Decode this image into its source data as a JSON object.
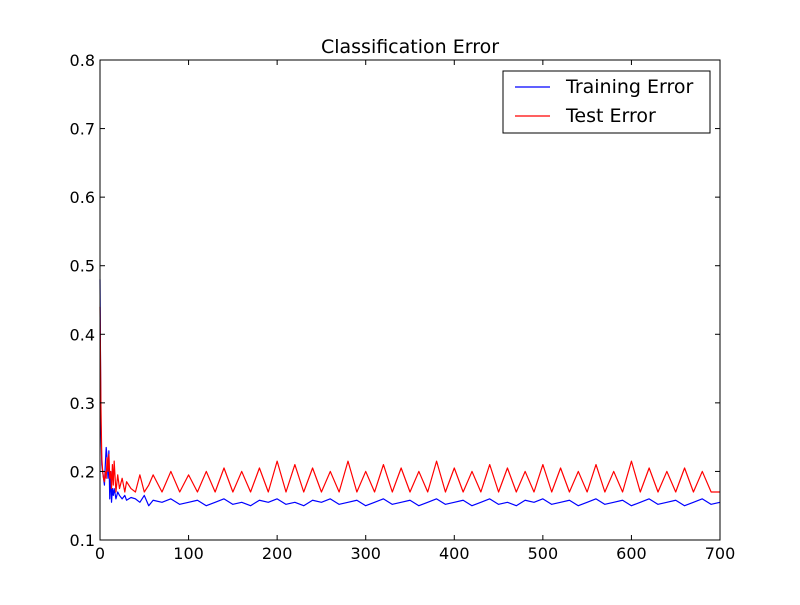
{
  "chart_data": {
    "type": "line",
    "title": "Classification Error",
    "xlabel": "",
    "ylabel": "",
    "xlim": [
      0,
      700
    ],
    "ylim": [
      0.1,
      0.8
    ],
    "xticks": [
      0,
      100,
      200,
      300,
      400,
      500,
      600,
      700
    ],
    "yticks": [
      0.1,
      0.2,
      0.3,
      0.4,
      0.5,
      0.6,
      0.7,
      0.8
    ],
    "xtick_labels": [
      "0",
      "100",
      "200",
      "300",
      "400",
      "500",
      "600",
      "700"
    ],
    "ytick_labels": [
      "0.1",
      "0.2",
      "0.3",
      "0.4",
      "0.5",
      "0.6",
      "0.7",
      "0.8"
    ],
    "grid": false,
    "legend_position": "top-right",
    "series": [
      {
        "name": "Training Error",
        "color": "#0000ff",
        "x": [
          0,
          1,
          2,
          3,
          4,
          5,
          6,
          7,
          8,
          9,
          10,
          11,
          12,
          13,
          14,
          15,
          16,
          18,
          20,
          22,
          25,
          28,
          30,
          35,
          40,
          45,
          50,
          55,
          60,
          70,
          80,
          90,
          100,
          110,
          120,
          130,
          140,
          150,
          160,
          170,
          180,
          190,
          200,
          210,
          220,
          230,
          240,
          250,
          260,
          270,
          280,
          290,
          300,
          310,
          320,
          330,
          340,
          350,
          360,
          370,
          380,
          390,
          400,
          410,
          420,
          430,
          440,
          450,
          460,
          470,
          480,
          490,
          500,
          510,
          520,
          530,
          540,
          550,
          560,
          570,
          580,
          590,
          600,
          610,
          620,
          630,
          640,
          650,
          660,
          670,
          680,
          690,
          700
        ],
        "values": [
          0.48,
          0.27,
          0.21,
          0.2,
          0.19,
          0.18,
          0.21,
          0.235,
          0.22,
          0.19,
          0.23,
          0.16,
          0.2,
          0.155,
          0.175,
          0.165,
          0.175,
          0.16,
          0.17,
          0.165,
          0.16,
          0.165,
          0.158,
          0.162,
          0.16,
          0.155,
          0.165,
          0.15,
          0.158,
          0.155,
          0.16,
          0.152,
          0.155,
          0.158,
          0.15,
          0.155,
          0.16,
          0.152,
          0.155,
          0.15,
          0.158,
          0.155,
          0.16,
          0.152,
          0.155,
          0.15,
          0.158,
          0.155,
          0.16,
          0.152,
          0.155,
          0.158,
          0.15,
          0.155,
          0.16,
          0.152,
          0.155,
          0.158,
          0.15,
          0.155,
          0.16,
          0.152,
          0.155,
          0.158,
          0.15,
          0.155,
          0.16,
          0.152,
          0.155,
          0.15,
          0.158,
          0.155,
          0.16,
          0.152,
          0.155,
          0.158,
          0.15,
          0.155,
          0.16,
          0.152,
          0.155,
          0.158,
          0.15,
          0.155,
          0.16,
          0.152,
          0.155,
          0.158,
          0.15,
          0.155,
          0.16,
          0.152,
          0.155
        ]
      },
      {
        "name": "Test Error",
        "color": "#ff0000",
        "x": [
          0,
          1,
          2,
          3,
          4,
          5,
          6,
          7,
          8,
          9,
          10,
          11,
          12,
          13,
          14,
          15,
          16,
          18,
          20,
          22,
          25,
          28,
          30,
          35,
          40,
          45,
          50,
          55,
          60,
          70,
          80,
          90,
          100,
          110,
          120,
          130,
          140,
          150,
          160,
          170,
          180,
          190,
          200,
          210,
          220,
          230,
          240,
          250,
          260,
          270,
          280,
          290,
          300,
          310,
          320,
          330,
          340,
          350,
          360,
          370,
          380,
          390,
          400,
          410,
          420,
          430,
          440,
          450,
          460,
          470,
          480,
          490,
          500,
          510,
          520,
          530,
          540,
          550,
          560,
          570,
          580,
          590,
          600,
          610,
          620,
          630,
          640,
          650,
          660,
          670,
          680,
          690,
          700
        ],
        "values": [
          0.44,
          0.3,
          0.22,
          0.2,
          0.19,
          0.185,
          0.2,
          0.19,
          0.22,
          0.2,
          0.225,
          0.19,
          0.2,
          0.175,
          0.21,
          0.18,
          0.215,
          0.17,
          0.195,
          0.175,
          0.19,
          0.17,
          0.185,
          0.175,
          0.17,
          0.195,
          0.17,
          0.18,
          0.195,
          0.17,
          0.2,
          0.17,
          0.195,
          0.17,
          0.2,
          0.17,
          0.205,
          0.17,
          0.2,
          0.17,
          0.205,
          0.17,
          0.215,
          0.17,
          0.21,
          0.17,
          0.205,
          0.17,
          0.2,
          0.17,
          0.215,
          0.17,
          0.2,
          0.17,
          0.21,
          0.17,
          0.205,
          0.17,
          0.2,
          0.17,
          0.215,
          0.17,
          0.205,
          0.17,
          0.2,
          0.17,
          0.21,
          0.17,
          0.205,
          0.17,
          0.2,
          0.17,
          0.21,
          0.17,
          0.205,
          0.17,
          0.2,
          0.17,
          0.21,
          0.17,
          0.2,
          0.17,
          0.215,
          0.17,
          0.205,
          0.17,
          0.2,
          0.17,
          0.205,
          0.17,
          0.2,
          0.17,
          0.17
        ]
      }
    ]
  }
}
